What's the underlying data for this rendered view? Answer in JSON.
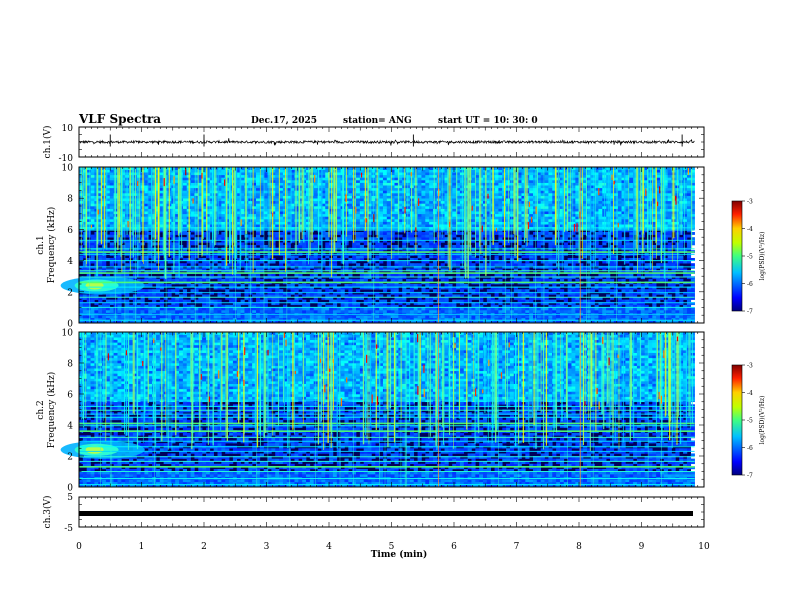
{
  "header": {
    "title": "VLF Spectra",
    "date": "Dec.17, 2025",
    "station": "station= ANG",
    "start": "start  UT =   10: 30: 0"
  },
  "colors": {
    "jet_low": "#00007f",
    "jet_mid_blue": "#0050ff",
    "jet_cyan": "#00e0ff",
    "jet_green": "#40ff40",
    "jet_yellow": "#ffff00",
    "jet_red": "#ff0000",
    "jet_top": "#7f0000",
    "waveform": "#000000",
    "frame": "#000000"
  },
  "chart_data": [
    {
      "type": "line",
      "name": "ch1-waveform",
      "ylabel": "ch.1(V)",
      "ylim": [
        -10,
        10
      ],
      "yticks": [
        "10",
        "-10"
      ],
      "xlim": [
        0,
        10
      ],
      "baseline": 0,
      "spikes_min": [
        0.5,
        2.0,
        5.35,
        9.65
      ],
      "note_text": ""
    },
    {
      "type": "heatmap",
      "name": "ch1-spectrogram",
      "ylabel": "ch.1\nFrequency (kHz)",
      "ylabel_line1": "ch.1",
      "ylabel_line2": "Frequency (kHz)",
      "ylim": [
        0,
        10
      ],
      "yticks": [
        "0",
        "2",
        "4",
        "6",
        "8",
        "10"
      ],
      "xlim": [
        0,
        9.85
      ],
      "colorbar": {
        "label": "log(PSD)(V²/Hz)",
        "ticks": [
          "-3",
          "-4",
          "-5",
          "-6",
          "-7"
        ],
        "range": [
          -7,
          -3
        ]
      },
      "hum_lines_khz": [
        0.18,
        0.55,
        1.0,
        1.3,
        1.65,
        1.95,
        2.3,
        2.6,
        2.95,
        3.2,
        3.35,
        3.6,
        4.0,
        4.4,
        4.55,
        4.75,
        5.3,
        5.95,
        6.1
      ],
      "strong_lines_khz": [
        4.55,
        3.2,
        2.6
      ],
      "blob": {
        "t_min": 0.25,
        "f_khz": 2.4
      },
      "sferic_band_khz": [
        6.0,
        10.0
      ]
    },
    {
      "type": "heatmap",
      "name": "ch2-spectrogram",
      "ylabel": "ch.2\nFrequency (kHz)",
      "ylabel_line1": "ch.2",
      "ylabel_line2": "Frequency (kHz)",
      "ylim": [
        0,
        10
      ],
      "yticks": [
        "0",
        "2",
        "4",
        "6",
        "8",
        "10"
      ],
      "xlim": [
        0,
        9.85
      ],
      "colorbar": {
        "label": "log(PSD)(V²/Hz)",
        "ticks": [
          "-3",
          "-4",
          "-5",
          "-6",
          "-7"
        ],
        "range": [
          -7,
          -3
        ]
      },
      "hum_lines_khz": [
        0.15,
        0.55,
        1.0,
        1.3,
        1.65,
        1.95,
        2.3,
        2.6,
        2.95,
        3.2,
        3.6,
        3.95,
        4.1,
        4.5,
        4.7,
        4.95,
        5.2,
        5.6
      ],
      "strong_lines_khz": [
        4.1,
        3.6,
        1.3
      ],
      "blob": {
        "t_min": 0.25,
        "f_khz": 2.4
      },
      "sferic_band_khz": [
        5.5,
        10.0
      ]
    },
    {
      "type": "line",
      "name": "ch3-waveform",
      "ylabel": "ch.3(V)",
      "ylim": [
        -5,
        5
      ],
      "yticks": [
        "5",
        "-5"
      ],
      "xlim": [
        0,
        10
      ],
      "level": -0.5
    }
  ],
  "xaxis": {
    "label": "Time  (min)",
    "ticks": [
      "0",
      "1",
      "2",
      "3",
      "4",
      "5",
      "6",
      "7",
      "8",
      "9",
      "10"
    ]
  }
}
